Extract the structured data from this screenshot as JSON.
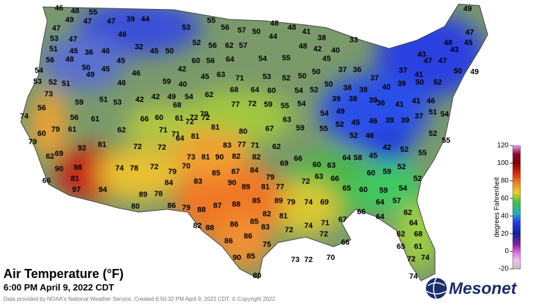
{
  "title": "Air Temperature (°F)",
  "subtitle": "6:00 PM April 9, 2022 CDT",
  "credit": "Data provided by NOAA's National Weather Service. Created 6:50:32 PM April 9, 2022 CDT. © Copyright 2022",
  "logo": "Mesonet",
  "colorbar": {
    "label": "degrees Fahrenheit",
    "lim": [
      -20,
      120
    ],
    "ticks": [
      120,
      100,
      80,
      60,
      40,
      20,
      0,
      -20
    ]
  },
  "stations": [
    46,
    48,
    55,
    49,
    47,
    47,
    39,
    44,
    47,
    46,
    53,
    47,
    32,
    45,
    50,
    36,
    46,
    51,
    45,
    45,
    56,
    48,
    50,
    45,
    49,
    46,
    42,
    54,
    53,
    52,
    51,
    46,
    59,
    40,
    42,
    49,
    54,
    73,
    56,
    59,
    51,
    53,
    42,
    53,
    55,
    56,
    57,
    50,
    48,
    48,
    41,
    44,
    52,
    56,
    62,
    57,
    54,
    55,
    48,
    42,
    40,
    38,
    33,
    60,
    56,
    64,
    45,
    63,
    71,
    53,
    52,
    50,
    50,
    45,
    37,
    36,
    37,
    62,
    68,
    64,
    60,
    54,
    52,
    50,
    38,
    38,
    39,
    38,
    39,
    40,
    39,
    50,
    52,
    77,
    72,
    59,
    55,
    54,
    54,
    49,
    68,
    72,
    79,
    72,
    37,
    41,
    47,
    47,
    50,
    49,
    43,
    48,
    43,
    45,
    47,
    49,
    36,
    41,
    41,
    46,
    51,
    54,
    37,
    39,
    39,
    46,
    45,
    52,
    55,
    59,
    63,
    67,
    80,
    81,
    72,
    71,
    71,
    66,
    60,
    61,
    62,
    61,
    56,
    61,
    79,
    60,
    74,
    79,
    69,
    62,
    92,
    81,
    72,
    72,
    64,
    81,
    83,
    77,
    71,
    62,
    66,
    60,
    63,
    64,
    58,
    45,
    42,
    52,
    55,
    55,
    52,
    52,
    46,
    90,
    98,
    81,
    66,
    97,
    94,
    74,
    78,
    72,
    79,
    70,
    73,
    81,
    90,
    82,
    82,
    69,
    85,
    87,
    84,
    79,
    84,
    83,
    90,
    89,
    81,
    77,
    72,
    63,
    66,
    65,
    60,
    60,
    59,
    59,
    54,
    52,
    52,
    89,
    78,
    80,
    86,
    79,
    88,
    87,
    88,
    85,
    89,
    79,
    74,
    69,
    82,
    81,
    82,
    88,
    86,
    85,
    83,
    72,
    74,
    71,
    67,
    66,
    64,
    57,
    64,
    62,
    64,
    86,
    86,
    75,
    72,
    66,
    62,
    68,
    65,
    61,
    90,
    85,
    73,
    72,
    70,
    72,
    74,
    74,
    80
  ]
}
